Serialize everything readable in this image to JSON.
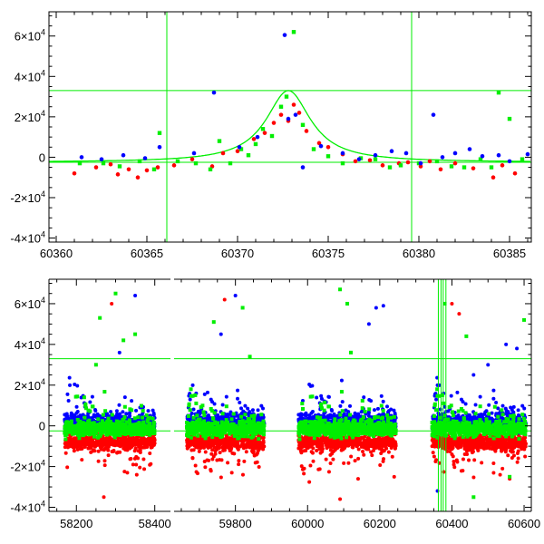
{
  "colors": {
    "red": "#ff0000",
    "green": "#00ee00",
    "blue": "#0000ff",
    "model_line": "#00ee00",
    "frame": "#000000"
  },
  "chart_data": [
    {
      "type": "scatter",
      "panel": "top",
      "title": "",
      "xlabel": "",
      "ylabel": "",
      "xlim": [
        60359.6,
        60386.2
      ],
      "ylim": [
        -42000,
        72000
      ],
      "x_ticks": [
        60360,
        60365,
        60370,
        60375,
        60380,
        60385
      ],
      "x_tick_labels": [
        "60360",
        "60365",
        "60370",
        "60375",
        "60380",
        "60385"
      ],
      "y_ticks": [
        -40000,
        -20000,
        0,
        20000,
        40000,
        60000
      ],
      "y_tick_labels": [
        {
          "mant": "-4",
          "exp": "4"
        },
        {
          "mant": "-2",
          "exp": "4"
        },
        {
          "mant": "0",
          "exp": ""
        },
        {
          "mant": "2",
          "exp": "4"
        },
        {
          "mant": "4",
          "exp": "4"
        },
        {
          "mant": "6",
          "exp": "4"
        }
      ],
      "grid": false,
      "reference_lines": {
        "vertical": [
          60366.1,
          60379.6
        ],
        "horizontal": [
          33000,
          -2500
        ]
      },
      "model_curve": {
        "shape": "lorentzian-peak",
        "baseline": -2500,
        "peak_x": 60372.8,
        "peak_y": 33000,
        "half_width": 1.5
      },
      "series": [
        {
          "color": "red",
          "points": [
            [
              60361.0,
              -8000
            ],
            [
              60362.2,
              -5000
            ],
            [
              60363.0,
              -3500
            ],
            [
              60363.4,
              -8500
            ],
            [
              60364.0,
              -6000
            ],
            [
              60364.5,
              -10000
            ],
            [
              60365.0,
              -6500
            ],
            [
              60365.6,
              -5000
            ],
            [
              60366.5,
              -4000
            ],
            [
              60367.5,
              -1000
            ],
            [
              60368.6,
              -4500
            ],
            [
              60369.2,
              2000
            ],
            [
              60370.0,
              3000
            ],
            [
              60370.9,
              9000
            ],
            [
              60371.5,
              12000
            ],
            [
              60372.0,
              17000
            ],
            [
              60372.4,
              21000
            ],
            [
              60372.8,
              18000
            ],
            [
              60373.1,
              26000
            ],
            [
              60373.4,
              22000
            ],
            [
              60373.8,
              13000
            ],
            [
              60374.5,
              7000
            ],
            [
              60375.0,
              5000
            ],
            [
              60375.8,
              1500
            ],
            [
              60376.5,
              -2000
            ],
            [
              60377.3,
              -1500
            ],
            [
              60378.0,
              -4000
            ],
            [
              60378.9,
              -3000
            ],
            [
              60379.4,
              -2500
            ],
            [
              60380.1,
              -4500
            ],
            [
              60380.6,
              -2000
            ],
            [
              60381.2,
              -6000
            ],
            [
              60382.0,
              -3000
            ],
            [
              60383.0,
              -5500
            ],
            [
              60384.1,
              -10000
            ],
            [
              60384.6,
              -4000
            ],
            [
              60385.3,
              -8000
            ]
          ]
        },
        {
          "color": "green",
          "points": [
            [
              60361.3,
              -3000
            ],
            [
              60362.6,
              -3000
            ],
            [
              60363.5,
              -4500
            ],
            [
              60364.6,
              -2000
            ],
            [
              60365.4,
              -6000
            ],
            [
              60365.7,
              12000
            ],
            [
              60366.7,
              -2000
            ],
            [
              60367.7,
              -3000
            ],
            [
              60368.5,
              -6000
            ],
            [
              60369.0,
              8000
            ],
            [
              60369.6,
              -3000
            ],
            [
              60370.2,
              4000
            ],
            [
              60370.6,
              1000
            ],
            [
              60371.0,
              6500
            ],
            [
              60371.4,
              14000
            ],
            [
              60371.9,
              10500
            ],
            [
              60372.4,
              25000
            ],
            [
              60372.7,
              30000
            ],
            [
              60373.1,
              62000
            ],
            [
              60373.6,
              16000
            ],
            [
              60374.2,
              4000
            ],
            [
              60375.0,
              500
            ],
            [
              60375.8,
              -3000
            ],
            [
              60376.8,
              -500
            ],
            [
              60377.6,
              -1000
            ],
            [
              60378.4,
              -5000
            ],
            [
              60379.0,
              -4000
            ],
            [
              60380.0,
              -3000
            ],
            [
              60381.0,
              -2000
            ],
            [
              60381.8,
              -4500
            ],
            [
              60382.5,
              -5000
            ],
            [
              60383.4,
              -1000
            ],
            [
              60384.0,
              -5000
            ],
            [
              60384.4,
              32000
            ],
            [
              60385.0,
              19000
            ],
            [
              60385.7,
              -1000
            ]
          ]
        },
        {
          "color": "blue",
          "points": [
            [
              60361.4,
              0
            ],
            [
              60362.5,
              -1000
            ],
            [
              60363.7,
              1000
            ],
            [
              60364.9,
              -500
            ],
            [
              60365.7,
              5000
            ],
            [
              60367.6,
              2000
            ],
            [
              60368.7,
              32000
            ],
            [
              60370.1,
              5000
            ],
            [
              60371.1,
              10000
            ],
            [
              60372.6,
              60500
            ],
            [
              60372.8,
              19000
            ],
            [
              60373.2,
              21000
            ],
            [
              60373.6,
              -5000
            ],
            [
              60374.6,
              5500
            ],
            [
              60375.8,
              2000
            ],
            [
              60376.7,
              -1000
            ],
            [
              60377.6,
              1000
            ],
            [
              60378.5,
              3000
            ],
            [
              60379.3,
              2000
            ],
            [
              60380.1,
              -3000
            ],
            [
              60380.8,
              21000
            ],
            [
              60381.3,
              0
            ],
            [
              60382.0,
              2000
            ],
            [
              60382.8,
              4000
            ],
            [
              60383.5,
              500
            ],
            [
              60384.4,
              1000
            ],
            [
              60385.0,
              -2000
            ],
            [
              60386.0,
              1500
            ]
          ]
        }
      ]
    },
    {
      "type": "scatter",
      "panel": "bottom",
      "title": "",
      "xlabel": "",
      "ylabel": "",
      "axis_break": {
        "between": [
          58440,
          59630
        ]
      },
      "xlim_segments": [
        [
          58130,
          58440
        ],
        [
          59630,
          60620
        ]
      ],
      "ylim": [
        -42000,
        72000
      ],
      "x_ticks": [
        58200,
        58400,
        59800,
        60000,
        60200,
        60400,
        60600
      ],
      "x_tick_labels": [
        "58200",
        "58400",
        "59800",
        "60000",
        "60200",
        "60400",
        "60600"
      ],
      "y_ticks": [
        -40000,
        -20000,
        0,
        20000,
        40000,
        60000
      ],
      "y_tick_labels": [
        {
          "mant": "-4",
          "exp": "4"
        },
        {
          "mant": "-2",
          "exp": "4"
        },
        {
          "mant": "0",
          "exp": ""
        },
        {
          "mant": "2",
          "exp": "4"
        },
        {
          "mant": "4",
          "exp": "4"
        },
        {
          "mant": "6",
          "exp": "4"
        }
      ],
      "grid": false,
      "reference_lines": {
        "vertical": [
          60366.1,
          60379.6
        ],
        "horizontal": [
          33000,
          -2500
        ]
      },
      "observing_seasons": [
        [
          58170,
          58400
        ],
        [
          59665,
          59880
        ],
        [
          59975,
          60245
        ],
        [
          60345,
          60605
        ]
      ],
      "series": [
        {
          "color": "red",
          "band_center": -8000,
          "band_spread": 4500,
          "outliers": [
            [
              58270,
              -35000
            ],
            [
              58330,
              -23000
            ],
            [
              58290,
              60000
            ],
            [
              59790,
              -23000
            ],
            [
              59770,
              62000
            ],
            [
              59740,
              -15000
            ],
            [
              60090,
              -36000
            ],
            [
              60140,
              -26000
            ],
            [
              60400,
              -14000
            ],
            [
              60430,
              -22000
            ],
            [
              60560,
              -26000
            ],
            [
              60540,
              -21000
            ],
            [
              60400,
              60000
            ],
            [
              60420,
              55000
            ],
            [
              60240,
              -25000
            ]
          ]
        },
        {
          "color": "green",
          "band_center": -1500,
          "band_spread": 4500,
          "outliers": [
            [
              58260,
              53000
            ],
            [
              58300,
              65000
            ],
            [
              58320,
              42000
            ],
            [
              58350,
              45000
            ],
            [
              58250,
              30000
            ],
            [
              58220,
              14000
            ],
            [
              59740,
              51000
            ],
            [
              59840,
              34000
            ],
            [
              59820,
              58000
            ],
            [
              60090,
              67000
            ],
            [
              60120,
              36000
            ],
            [
              60110,
              60000
            ],
            [
              60380,
              60000
            ],
            [
              60440,
              44000
            ],
            [
              60600,
              52000
            ],
            [
              60560,
              -25000
            ],
            [
              60460,
              -35000
            ]
          ]
        },
        {
          "color": "blue",
          "band_center": 2000,
          "band_spread": 5000,
          "outliers": [
            [
              58350,
              64000
            ],
            [
              58310,
              36000
            ],
            [
              59800,
              64000
            ],
            [
              59760,
              45000
            ],
            [
              60210,
              59000
            ],
            [
              60190,
              58000
            ],
            [
              60170,
              50000
            ],
            [
              60550,
              40000
            ],
            [
              60580,
              38000
            ],
            [
              60500,
              30000
            ],
            [
              60460,
              25000
            ],
            [
              60360,
              -32000
            ]
          ]
        }
      ]
    }
  ]
}
